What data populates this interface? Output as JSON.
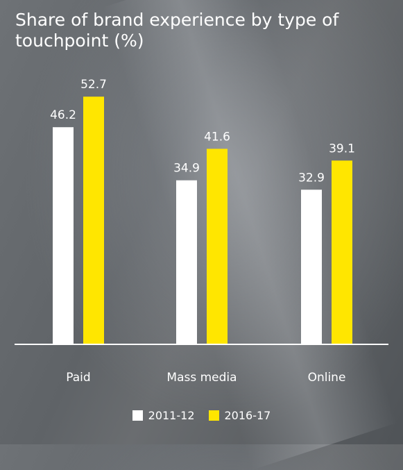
{
  "chart_data": {
    "type": "bar",
    "title": "Share of brand experience by type of touchpoint (%)",
    "categories": [
      "Paid",
      "Mass media",
      "Online"
    ],
    "series": [
      {
        "name": "2011-12",
        "values": [
          46.2,
          34.9,
          32.9
        ],
        "color": "#ffffff"
      },
      {
        "name": "2016-17",
        "values": [
          52.7,
          41.6,
          39.1
        ],
        "color": "#ffe600"
      }
    ],
    "ylim": [
      0,
      60
    ],
    "grid": false,
    "legend_position": "bottom-center"
  }
}
